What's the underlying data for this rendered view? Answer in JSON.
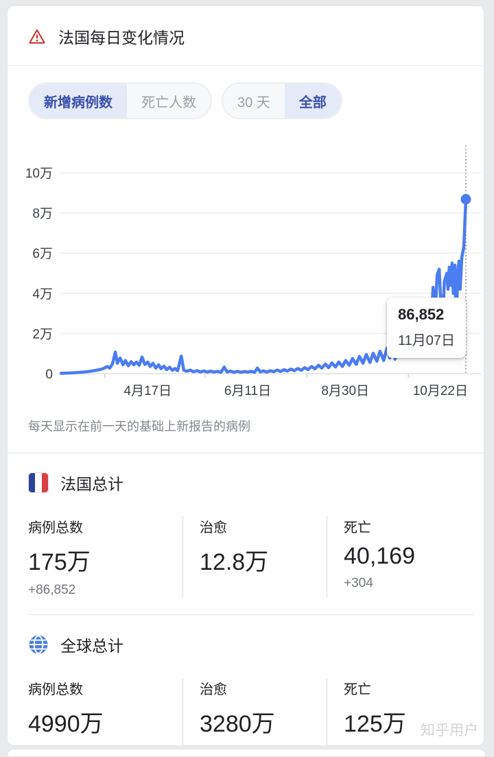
{
  "header": {
    "title": "法国每日变化情况"
  },
  "controls": {
    "metric": {
      "options": [
        {
          "label": "新增病例数",
          "selected": true
        },
        {
          "label": "死亡人数",
          "selected": false
        }
      ]
    },
    "range": {
      "options": [
        {
          "label": "30 天",
          "selected": false
        },
        {
          "label": "全部",
          "selected": true
        }
      ]
    }
  },
  "chart_data": {
    "type": "line",
    "title": "法国每日变化情况 — 新增病例数(全部)",
    "xlabel": "",
    "ylabel": "",
    "y_ticks": [
      "0",
      "2万",
      "4万",
      "6万",
      "8万",
      "10万"
    ],
    "y_max": 100000,
    "grid": true,
    "x_tick_labels": [
      "4月17日",
      "6月11日",
      "8月30日",
      "10月22日"
    ],
    "x_tick_label_pos": [
      0.214,
      0.461,
      0.702,
      0.937
    ],
    "x_axis_tick_pos": [
      0.108,
      0.356,
      0.607,
      0.858
    ],
    "highlight": {
      "value": 86852,
      "value_label": "86,852",
      "date_label": "11月07日"
    },
    "series": [
      [
        0.0,
        200
      ],
      [
        0.014,
        300
      ],
      [
        0.027,
        400
      ],
      [
        0.041,
        600
      ],
      [
        0.054,
        800
      ],
      [
        0.068,
        1100
      ],
      [
        0.081,
        1500
      ],
      [
        0.095,
        2000
      ],
      [
        0.105,
        2600
      ],
      [
        0.114,
        3600
      ],
      [
        0.12,
        2800
      ],
      [
        0.127,
        4800
      ],
      [
        0.134,
        10800
      ],
      [
        0.139,
        5200
      ],
      [
        0.146,
        7800
      ],
      [
        0.153,
        4400
      ],
      [
        0.159,
        6600
      ],
      [
        0.166,
        4000
      ],
      [
        0.173,
        6000
      ],
      [
        0.18,
        4400
      ],
      [
        0.186,
        5800
      ],
      [
        0.193,
        4200
      ],
      [
        0.2,
        8300
      ],
      [
        0.207,
        4600
      ],
      [
        0.214,
        5800
      ],
      [
        0.22,
        3600
      ],
      [
        0.227,
        5200
      ],
      [
        0.234,
        2800
      ],
      [
        0.241,
        4400
      ],
      [
        0.247,
        2500
      ],
      [
        0.254,
        3800
      ],
      [
        0.261,
        2000
      ],
      [
        0.268,
        3200
      ],
      [
        0.275,
        1700
      ],
      [
        0.281,
        2600
      ],
      [
        0.288,
        1500
      ],
      [
        0.297,
        8800
      ],
      [
        0.303,
        1800
      ],
      [
        0.31,
        1200
      ],
      [
        0.319,
        1800
      ],
      [
        0.327,
        1000
      ],
      [
        0.336,
        1500
      ],
      [
        0.344,
        900
      ],
      [
        0.353,
        1400
      ],
      [
        0.361,
        800
      ],
      [
        0.369,
        1300
      ],
      [
        0.378,
        800
      ],
      [
        0.386,
        1200
      ],
      [
        0.395,
        700
      ],
      [
        0.403,
        3300
      ],
      [
        0.41,
        900
      ],
      [
        0.419,
        1300
      ],
      [
        0.427,
        700
      ],
      [
        0.436,
        1200
      ],
      [
        0.444,
        700
      ],
      [
        0.453,
        1100
      ],
      [
        0.461,
        800
      ],
      [
        0.469,
        1200
      ],
      [
        0.478,
        700
      ],
      [
        0.485,
        2800
      ],
      [
        0.492,
        900
      ],
      [
        0.5,
        1400
      ],
      [
        0.508,
        800
      ],
      [
        0.517,
        1500
      ],
      [
        0.525,
        1000
      ],
      [
        0.534,
        1800
      ],
      [
        0.542,
        1100
      ],
      [
        0.551,
        2000
      ],
      [
        0.559,
        1300
      ],
      [
        0.568,
        2300
      ],
      [
        0.576,
        1500
      ],
      [
        0.585,
        2600
      ],
      [
        0.593,
        1700
      ],
      [
        0.602,
        3000
      ],
      [
        0.61,
        2000
      ],
      [
        0.619,
        3600
      ],
      [
        0.627,
        2400
      ],
      [
        0.636,
        4200
      ],
      [
        0.644,
        2800
      ],
      [
        0.653,
        4800
      ],
      [
        0.661,
        3000
      ],
      [
        0.669,
        5400
      ],
      [
        0.678,
        3300
      ],
      [
        0.686,
        5800
      ],
      [
        0.695,
        3600
      ],
      [
        0.703,
        6600
      ],
      [
        0.712,
        4200
      ],
      [
        0.72,
        7600
      ],
      [
        0.729,
        4600
      ],
      [
        0.737,
        8600
      ],
      [
        0.746,
        5200
      ],
      [
        0.754,
        9600
      ],
      [
        0.763,
        5600
      ],
      [
        0.771,
        10200
      ],
      [
        0.78,
        6200
      ],
      [
        0.788,
        11200
      ],
      [
        0.797,
        6600
      ],
      [
        0.805,
        12800
      ],
      [
        0.812,
        7800
      ],
      [
        0.819,
        14200
      ],
      [
        0.825,
        7200
      ],
      [
        0.832,
        15200
      ],
      [
        0.839,
        8800
      ],
      [
        0.846,
        16200
      ],
      [
        0.853,
        9500
      ],
      [
        0.859,
        17000
      ],
      [
        0.866,
        10500
      ],
      [
        0.873,
        17800
      ],
      [
        0.88,
        11200
      ],
      [
        0.886,
        18800
      ],
      [
        0.893,
        12000
      ],
      [
        0.9,
        19800
      ],
      [
        0.907,
        13500
      ],
      [
        0.914,
        23000
      ],
      [
        0.919,
        43000
      ],
      [
        0.924,
        29000
      ],
      [
        0.929,
        49000
      ],
      [
        0.934,
        52000
      ],
      [
        0.937,
        40000
      ],
      [
        0.942,
        24000
      ],
      [
        0.947,
        46000
      ],
      [
        0.953,
        50000
      ],
      [
        0.956,
        42000
      ],
      [
        0.959,
        53000
      ],
      [
        0.963,
        44000
      ],
      [
        0.966,
        55000
      ],
      [
        0.969,
        40000
      ],
      [
        0.973,
        54000
      ],
      [
        0.976,
        24000
      ],
      [
        0.98,
        50000
      ],
      [
        0.983,
        56000
      ],
      [
        0.986,
        42000
      ],
      [
        0.99,
        58000
      ],
      [
        0.995,
        63000
      ],
      [
        1.0,
        86852
      ]
    ]
  },
  "caption": "每天显示在前一天的基础上新报告的病例",
  "france": {
    "title": "法国总计",
    "stats": [
      {
        "label": "病例总数",
        "value": "175万",
        "delta": "+86,852"
      },
      {
        "label": "治愈",
        "value": "12.8万",
        "delta": ""
      },
      {
        "label": "死亡",
        "value": "40,169",
        "delta": "+304"
      }
    ]
  },
  "global": {
    "title": "全球总计",
    "stats": [
      {
        "label": "病例总数",
        "value": "4990万",
        "delta": ""
      },
      {
        "label": "治愈",
        "value": "3280万",
        "delta": ""
      },
      {
        "label": "死亡",
        "value": "125万",
        "delta": ""
      }
    ]
  },
  "watermark": "知乎用户",
  "colors": {
    "line_blue": "#4b7cf0",
    "selected_text": "#3a51aa",
    "selected_bg": "#e5eaf8",
    "warning_red": "#c5332d",
    "grid": "#ebecee",
    "axis": "#d7d9dc",
    "tick_text": "#3c4043",
    "flag_blue": "#2e4399",
    "flag_red": "#d64045",
    "globe_blue": "#4a7de0"
  }
}
